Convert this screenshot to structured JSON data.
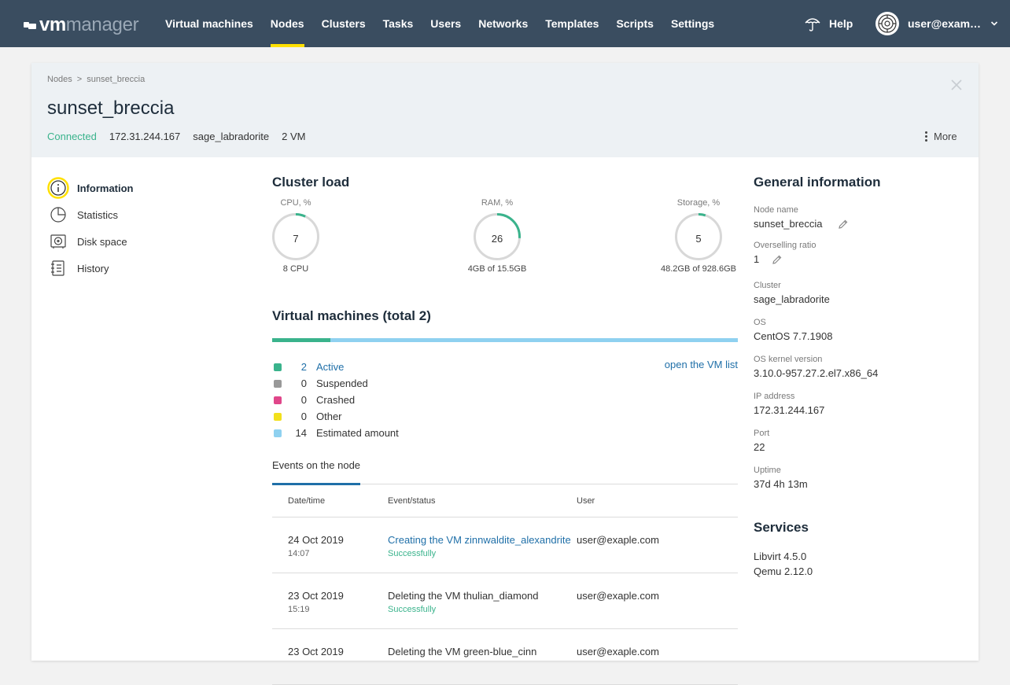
{
  "brand": {
    "part1": "vm",
    "part2": "manager"
  },
  "nav": {
    "items": [
      {
        "label": "Virtual machines"
      },
      {
        "label": "Nodes"
      },
      {
        "label": "Clusters"
      },
      {
        "label": "Tasks"
      },
      {
        "label": "Users"
      },
      {
        "label": "Networks"
      },
      {
        "label": "Templates"
      },
      {
        "label": "Scripts"
      },
      {
        "label": "Settings"
      }
    ],
    "active": "Nodes",
    "help": "Help",
    "user": "user@exam…",
    "accent": "#ffe000",
    "bar_color": "#3a4d60"
  },
  "breadcrumb": {
    "root": "Nodes",
    "sep": ">",
    "current": "sunset_breccia"
  },
  "node": {
    "title": "sunset_breccia",
    "status": "Connected",
    "ip": "172.31.244.167",
    "cluster": "sage_labradorite",
    "vms": "2 VM",
    "more": "More"
  },
  "side_menu": [
    {
      "label": "Information",
      "icon": "info-icon"
    },
    {
      "label": "Statistics",
      "icon": "pie-chart-icon"
    },
    {
      "label": "Disk space",
      "icon": "disk-icon"
    },
    {
      "label": "History",
      "icon": "history-icon"
    }
  ],
  "cluster_load": {
    "title": "Cluster load",
    "gauges": [
      {
        "caption": "CPU, %",
        "value": "7",
        "fraction": 0.07,
        "sub": "8 CPU"
      },
      {
        "caption": "RAM, %",
        "value": "26",
        "fraction": 0.26,
        "sub": "4GB of 15.5GB"
      },
      {
        "caption": "Storage, %",
        "value": "5",
        "fraction": 0.05,
        "sub": "48.2GB of 928.6GB"
      }
    ]
  },
  "vm_summary": {
    "title": "Virtual machines (total 2)",
    "active_fraction": 0.125,
    "open_link": "open the VM list",
    "legend": [
      {
        "count": "2",
        "label": "Active",
        "color": "#3ab38c"
      },
      {
        "count": "0",
        "label": "Suspended",
        "color": "#999999"
      },
      {
        "count": "0",
        "label": "Crashed",
        "color": "#e0468a"
      },
      {
        "count": "0",
        "label": "Other",
        "color": "#f2e01c"
      },
      {
        "count": "14",
        "label": "Estimated amount",
        "color": "#8fd1f0"
      }
    ]
  },
  "events": {
    "tab": "Events on the node",
    "columns": {
      "date": "Date/time",
      "event": "Event/status",
      "user": "User"
    },
    "rows": [
      {
        "date": "24 Oct 2019",
        "time": "14:07",
        "event": "Creating the VM zinnwaldite_alexandrite",
        "status": "Successfully",
        "user": "user@exaple.com"
      },
      {
        "date": "23 Oct 2019",
        "time": "15:19",
        "event": "Deleting the VM thulian_diamond",
        "status": "Successfully",
        "user": "user@exaple.com"
      },
      {
        "date": "23 Oct 2019",
        "time": "",
        "event": "Deleting the VM green-blue_cinn",
        "status": "",
        "user": "user@exaple.com"
      }
    ]
  },
  "general": {
    "title": "General information",
    "fields": {
      "node_name": {
        "label": "Node name",
        "value": "sunset_breccia"
      },
      "overselling": {
        "label": "Overselling ratio",
        "value": "1"
      },
      "cluster": {
        "label": "Cluster",
        "value": "sage_labradorite"
      },
      "os": {
        "label": "OS",
        "value": "CentOS 7.7.1908"
      },
      "kernel": {
        "label": "OS kernel version",
        "value": "3.10.0-957.27.2.el7.x86_64"
      },
      "ip": {
        "label": "IP address",
        "value": "172.31.244.167"
      },
      "port": {
        "label": "Port",
        "value": "22"
      },
      "uptime": {
        "label": "Uptime",
        "value": "37d 4h 13m"
      }
    }
  },
  "services": {
    "title": "Services",
    "items": [
      "Libvirt 4.5.0",
      "Qemu 2.12.0"
    ]
  }
}
